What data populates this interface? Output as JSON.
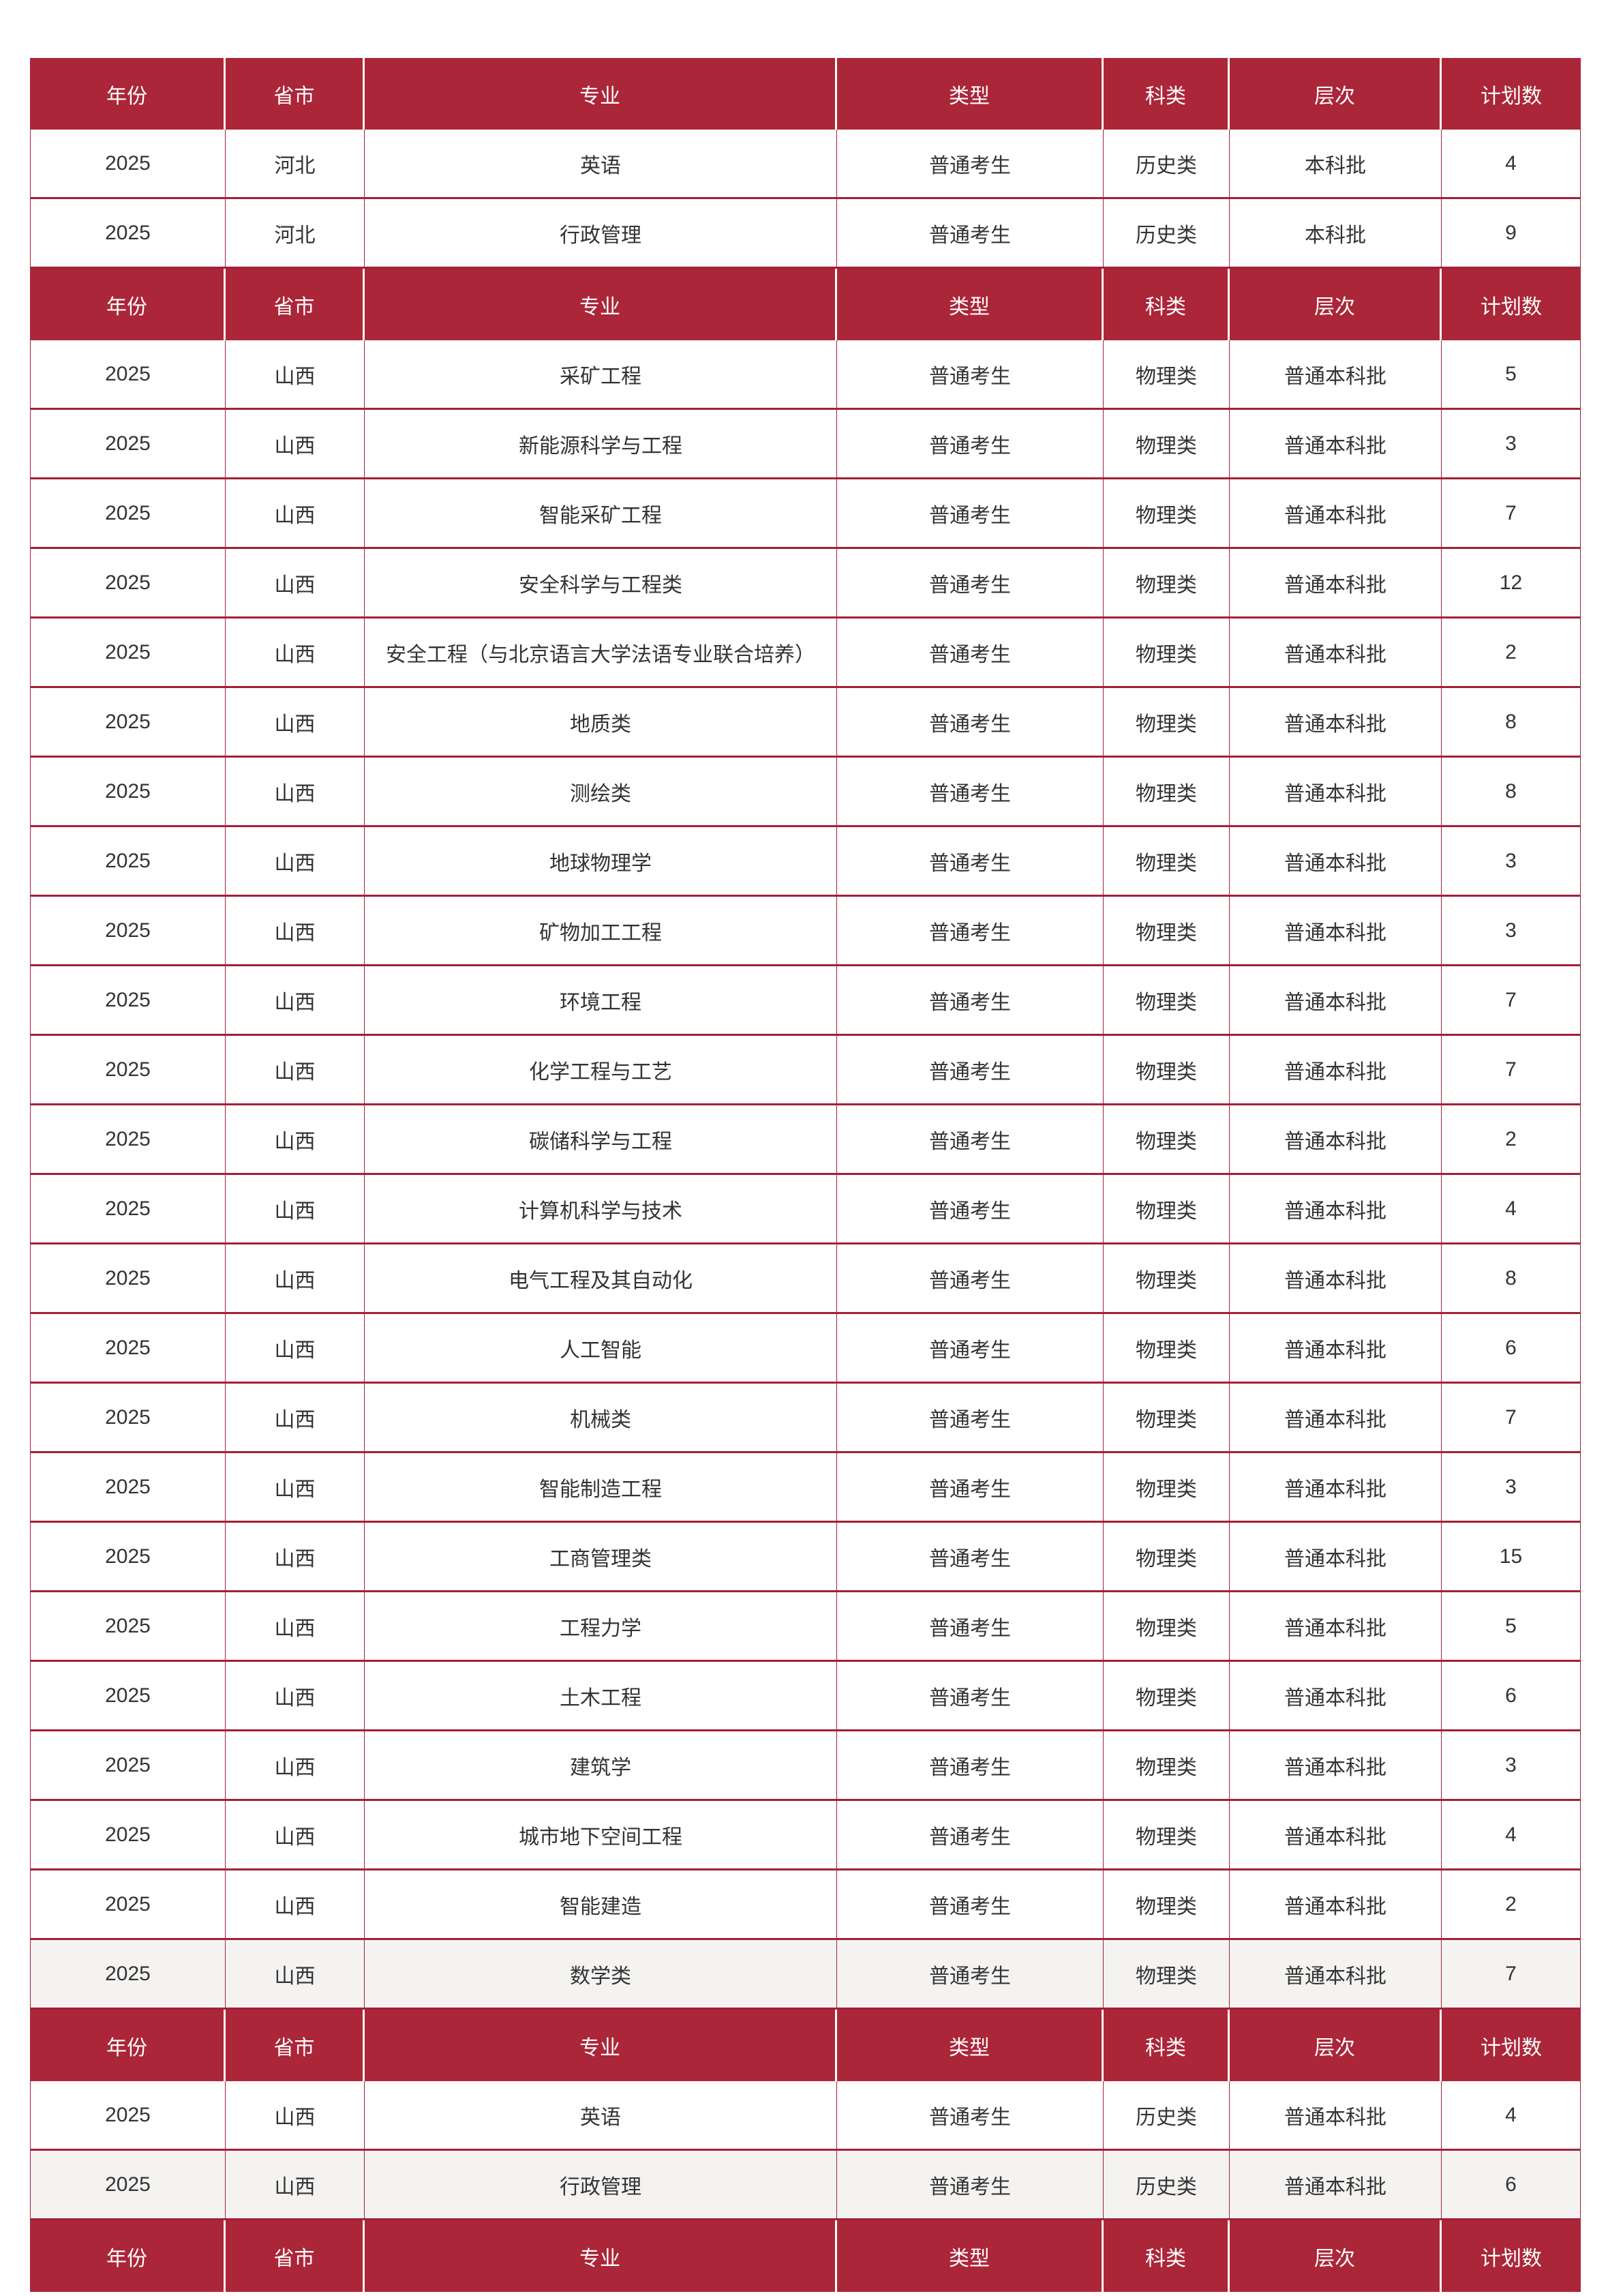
{
  "columns": [
    "年份",
    "省市",
    "专业",
    "类型",
    "科类",
    "层次",
    "计划数"
  ],
  "blocks": [
    {
      "type": "header"
    },
    {
      "type": "rows",
      "rows": [
        {
          "cells": [
            "2025",
            "河北",
            "英语",
            "普通考生",
            "历史类",
            "本科批",
            "4"
          ],
          "shaded": false
        },
        {
          "cells": [
            "2025",
            "河北",
            "行政管理",
            "普通考生",
            "历史类",
            "本科批",
            "9"
          ],
          "shaded": false
        }
      ]
    },
    {
      "type": "header"
    },
    {
      "type": "rows",
      "rows": [
        {
          "cells": [
            "2025",
            "山西",
            "采矿工程",
            "普通考生",
            "物理类",
            "普通本科批",
            "5"
          ],
          "shaded": false
        },
        {
          "cells": [
            "2025",
            "山西",
            "新能源科学与工程",
            "普通考生",
            "物理类",
            "普通本科批",
            "3"
          ],
          "shaded": false
        },
        {
          "cells": [
            "2025",
            "山西",
            "智能采矿工程",
            "普通考生",
            "物理类",
            "普通本科批",
            "7"
          ],
          "shaded": false
        },
        {
          "cells": [
            "2025",
            "山西",
            "安全科学与工程类",
            "普通考生",
            "物理类",
            "普通本科批",
            "12"
          ],
          "shaded": false
        },
        {
          "cells": [
            "2025",
            "山西",
            "安全工程（与北京语言大学法语专业联合培养）",
            "普通考生",
            "物理类",
            "普通本科批",
            "2"
          ],
          "shaded": false
        },
        {
          "cells": [
            "2025",
            "山西",
            "地质类",
            "普通考生",
            "物理类",
            "普通本科批",
            "8"
          ],
          "shaded": false
        },
        {
          "cells": [
            "2025",
            "山西",
            "测绘类",
            "普通考生",
            "物理类",
            "普通本科批",
            "8"
          ],
          "shaded": false
        },
        {
          "cells": [
            "2025",
            "山西",
            "地球物理学",
            "普通考生",
            "物理类",
            "普通本科批",
            "3"
          ],
          "shaded": false
        },
        {
          "cells": [
            "2025",
            "山西",
            "矿物加工工程",
            "普通考生",
            "物理类",
            "普通本科批",
            "3"
          ],
          "shaded": false
        },
        {
          "cells": [
            "2025",
            "山西",
            "环境工程",
            "普通考生",
            "物理类",
            "普通本科批",
            "7"
          ],
          "shaded": false
        },
        {
          "cells": [
            "2025",
            "山西",
            "化学工程与工艺",
            "普通考生",
            "物理类",
            "普通本科批",
            "7"
          ],
          "shaded": false
        },
        {
          "cells": [
            "2025",
            "山西",
            "碳储科学与工程",
            "普通考生",
            "物理类",
            "普通本科批",
            "2"
          ],
          "shaded": false
        },
        {
          "cells": [
            "2025",
            "山西",
            "计算机科学与技术",
            "普通考生",
            "物理类",
            "普通本科批",
            "4"
          ],
          "shaded": false
        },
        {
          "cells": [
            "2025",
            "山西",
            "电气工程及其自动化",
            "普通考生",
            "物理类",
            "普通本科批",
            "8"
          ],
          "shaded": false
        },
        {
          "cells": [
            "2025",
            "山西",
            "人工智能",
            "普通考生",
            "物理类",
            "普通本科批",
            "6"
          ],
          "shaded": false
        },
        {
          "cells": [
            "2025",
            "山西",
            "机械类",
            "普通考生",
            "物理类",
            "普通本科批",
            "7"
          ],
          "shaded": false
        },
        {
          "cells": [
            "2025",
            "山西",
            "智能制造工程",
            "普通考生",
            "物理类",
            "普通本科批",
            "3"
          ],
          "shaded": false
        },
        {
          "cells": [
            "2025",
            "山西",
            "工商管理类",
            "普通考生",
            "物理类",
            "普通本科批",
            "15"
          ],
          "shaded": false
        },
        {
          "cells": [
            "2025",
            "山西",
            "工程力学",
            "普通考生",
            "物理类",
            "普通本科批",
            "5"
          ],
          "shaded": false
        },
        {
          "cells": [
            "2025",
            "山西",
            "土木工程",
            "普通考生",
            "物理类",
            "普通本科批",
            "6"
          ],
          "shaded": false
        },
        {
          "cells": [
            "2025",
            "山西",
            "建筑学",
            "普通考生",
            "物理类",
            "普通本科批",
            "3"
          ],
          "shaded": false
        },
        {
          "cells": [
            "2025",
            "山西",
            "城市地下空间工程",
            "普通考生",
            "物理类",
            "普通本科批",
            "4"
          ],
          "shaded": false
        },
        {
          "cells": [
            "2025",
            "山西",
            "智能建造",
            "普通考生",
            "物理类",
            "普通本科批",
            "2"
          ],
          "shaded": false
        },
        {
          "cells": [
            "2025",
            "山西",
            "数学类",
            "普通考生",
            "物理类",
            "普通本科批",
            "7"
          ],
          "shaded": true
        }
      ]
    },
    {
      "type": "header"
    },
    {
      "type": "rows",
      "rows": [
        {
          "cells": [
            "2025",
            "山西",
            "英语",
            "普通考生",
            "历史类",
            "普通本科批",
            "4"
          ],
          "shaded": false
        },
        {
          "cells": [
            "2025",
            "山西",
            "行政管理",
            "普通考生",
            "历史类",
            "普通本科批",
            "6"
          ],
          "shaded": true
        }
      ]
    },
    {
      "type": "header"
    }
  ],
  "colors": {
    "header_bg": "#aa2638",
    "border": "#a22038",
    "shaded_row_bg": "#f4f3f1",
    "body_text": "#333333",
    "header_text": "#ffffff",
    "page_bg": "#ffffff"
  }
}
